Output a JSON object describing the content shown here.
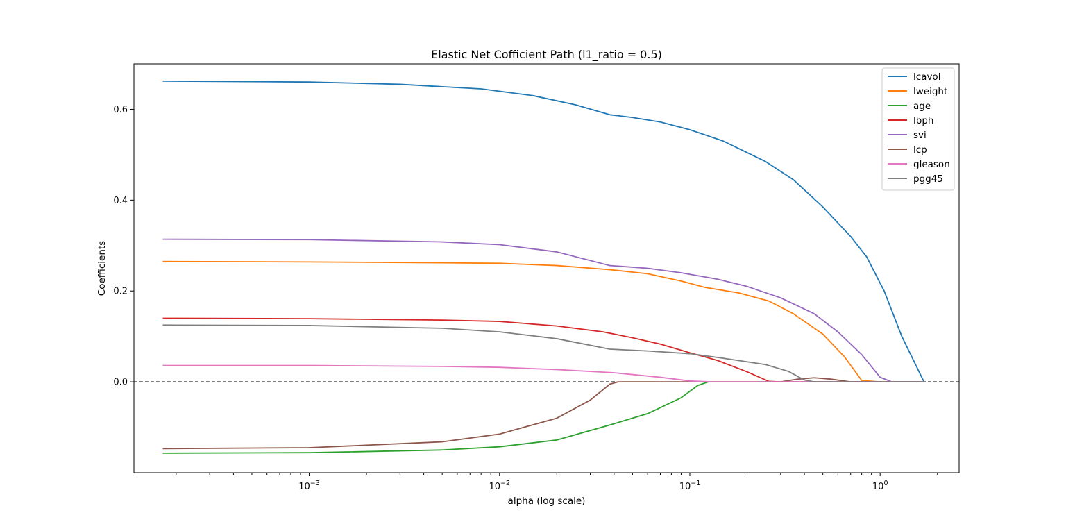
{
  "chart_data": {
    "type": "line",
    "title": "Elastic Net Cofficient Path (l1_ratio = 0.5)",
    "xlabel": "alpha (log scale)",
    "ylabel": "Coefficients",
    "x_scale": "log",
    "xlim": [
      0.00012,
      2.6
    ],
    "ylim": [
      -0.2,
      0.7
    ],
    "x_ticks": [
      {
        "value": 0.001,
        "base": "10",
        "exp": "−3"
      },
      {
        "value": 0.01,
        "base": "10",
        "exp": "−2"
      },
      {
        "value": 0.1,
        "base": "10",
        "exp": "−1"
      },
      {
        "value": 1,
        "base": "10",
        "exp": "0"
      }
    ],
    "y_ticks": [
      {
        "value": 0.0,
        "label": "0.0"
      },
      {
        "value": 0.2,
        "label": "0.2"
      },
      {
        "value": 0.4,
        "label": "0.4"
      },
      {
        "value": 0.6,
        "label": "0.6"
      }
    ],
    "zero_line": {
      "y": 0,
      "style": "dashed",
      "color": "#000000"
    },
    "legend_position": "top-right",
    "grid": false,
    "series": [
      {
        "name": "lcavol",
        "color": "#1f77b4",
        "points": [
          [
            0.00017,
            0.662
          ],
          [
            0.001,
            0.66
          ],
          [
            0.003,
            0.655
          ],
          [
            0.008,
            0.645
          ],
          [
            0.015,
            0.63
          ],
          [
            0.025,
            0.61
          ],
          [
            0.038,
            0.588
          ],
          [
            0.05,
            0.582
          ],
          [
            0.07,
            0.572
          ],
          [
            0.1,
            0.555
          ],
          [
            0.15,
            0.53
          ],
          [
            0.25,
            0.485
          ],
          [
            0.35,
            0.445
          ],
          [
            0.5,
            0.385
          ],
          [
            0.7,
            0.32
          ],
          [
            0.85,
            0.275
          ],
          [
            1.05,
            0.2
          ],
          [
            1.3,
            0.1
          ],
          [
            1.7,
            0.0
          ]
        ]
      },
      {
        "name": "lweight",
        "color": "#ff7f0e",
        "points": [
          [
            0.00017,
            0.265
          ],
          [
            0.001,
            0.264
          ],
          [
            0.005,
            0.262
          ],
          [
            0.01,
            0.261
          ],
          [
            0.02,
            0.256
          ],
          [
            0.038,
            0.247
          ],
          [
            0.06,
            0.238
          ],
          [
            0.09,
            0.222
          ],
          [
            0.12,
            0.208
          ],
          [
            0.18,
            0.196
          ],
          [
            0.26,
            0.178
          ],
          [
            0.35,
            0.15
          ],
          [
            0.5,
            0.105
          ],
          [
            0.65,
            0.055
          ],
          [
            0.8,
            0.003
          ],
          [
            1.0,
            0.0
          ],
          [
            1.7,
            0.0
          ]
        ]
      },
      {
        "name": "age",
        "color": "#2ca02c",
        "points": [
          [
            0.00017,
            -0.157
          ],
          [
            0.001,
            -0.156
          ],
          [
            0.005,
            -0.15
          ],
          [
            0.01,
            -0.143
          ],
          [
            0.02,
            -0.128
          ],
          [
            0.038,
            -0.095
          ],
          [
            0.06,
            -0.07
          ],
          [
            0.09,
            -0.035
          ],
          [
            0.11,
            -0.008
          ],
          [
            0.125,
            0.0
          ],
          [
            0.2,
            0.0
          ],
          [
            0.5,
            0.0
          ],
          [
            1.0,
            0.0
          ],
          [
            1.7,
            0.0
          ]
        ]
      },
      {
        "name": "lbph",
        "color": "#d62728",
        "points": [
          [
            0.00017,
            0.14
          ],
          [
            0.001,
            0.139
          ],
          [
            0.005,
            0.136
          ],
          [
            0.01,
            0.133
          ],
          [
            0.02,
            0.123
          ],
          [
            0.035,
            0.11
          ],
          [
            0.05,
            0.097
          ],
          [
            0.07,
            0.083
          ],
          [
            0.1,
            0.064
          ],
          [
            0.14,
            0.047
          ],
          [
            0.2,
            0.022
          ],
          [
            0.26,
            0.001
          ],
          [
            0.3,
            0.0
          ],
          [
            0.6,
            0.0
          ],
          [
            1.7,
            0.0
          ]
        ]
      },
      {
        "name": "svi",
        "color": "#9467bd",
        "points": [
          [
            0.00017,
            0.314
          ],
          [
            0.001,
            0.313
          ],
          [
            0.005,
            0.308
          ],
          [
            0.01,
            0.302
          ],
          [
            0.02,
            0.286
          ],
          [
            0.038,
            0.256
          ],
          [
            0.06,
            0.25
          ],
          [
            0.09,
            0.24
          ],
          [
            0.14,
            0.226
          ],
          [
            0.2,
            0.21
          ],
          [
            0.3,
            0.185
          ],
          [
            0.45,
            0.15
          ],
          [
            0.6,
            0.11
          ],
          [
            0.8,
            0.06
          ],
          [
            1.0,
            0.01
          ],
          [
            1.15,
            0.0
          ],
          [
            1.7,
            0.0
          ]
        ]
      },
      {
        "name": "lcp",
        "color": "#8c564b",
        "points": [
          [
            0.00017,
            -0.147
          ],
          [
            0.001,
            -0.145
          ],
          [
            0.005,
            -0.132
          ],
          [
            0.01,
            -0.115
          ],
          [
            0.02,
            -0.08
          ],
          [
            0.03,
            -0.04
          ],
          [
            0.038,
            -0.005
          ],
          [
            0.042,
            0.0
          ],
          [
            0.1,
            0.0
          ],
          [
            0.3,
            0.0
          ],
          [
            0.37,
            0.006
          ],
          [
            0.45,
            0.009
          ],
          [
            0.55,
            0.006
          ],
          [
            0.7,
            0.0
          ],
          [
            1.7,
            0.0
          ]
        ]
      },
      {
        "name": "gleason",
        "color": "#e377c2",
        "points": [
          [
            0.00017,
            0.036
          ],
          [
            0.001,
            0.036
          ],
          [
            0.005,
            0.034
          ],
          [
            0.01,
            0.032
          ],
          [
            0.02,
            0.027
          ],
          [
            0.04,
            0.02
          ],
          [
            0.07,
            0.01
          ],
          [
            0.1,
            0.002
          ],
          [
            0.13,
            0.0
          ],
          [
            0.5,
            0.0
          ],
          [
            1.7,
            0.0
          ]
        ]
      },
      {
        "name": "pgg45",
        "color": "#7f7f7f",
        "points": [
          [
            0.00017,
            0.125
          ],
          [
            0.001,
            0.124
          ],
          [
            0.005,
            0.118
          ],
          [
            0.01,
            0.11
          ],
          [
            0.02,
            0.095
          ],
          [
            0.038,
            0.072
          ],
          [
            0.06,
            0.068
          ],
          [
            0.1,
            0.062
          ],
          [
            0.15,
            0.052
          ],
          [
            0.25,
            0.038
          ],
          [
            0.33,
            0.023
          ],
          [
            0.4,
            0.004
          ],
          [
            0.45,
            0.0
          ],
          [
            1.0,
            0.0
          ],
          [
            1.7,
            0.0
          ]
        ]
      }
    ]
  }
}
